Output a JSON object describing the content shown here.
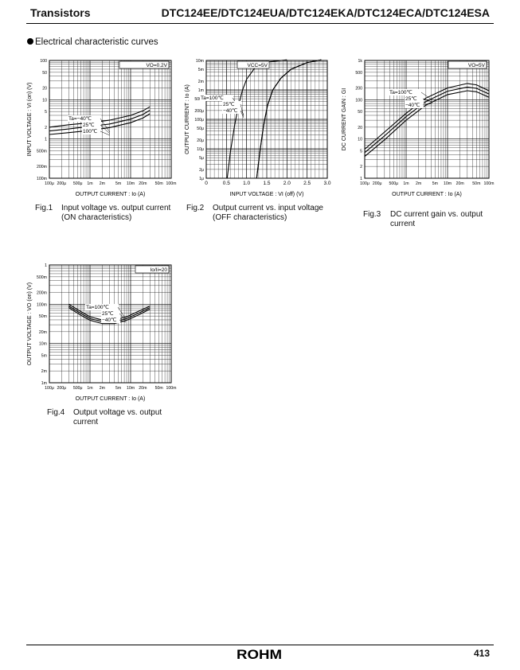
{
  "header": {
    "category": "Transistors",
    "part_numbers": "DTC124EE/DTC124EUA/DTC124EKA/DTC124ECA/DTC124ESA"
  },
  "section_title": "Electrical characteristic curves",
  "footer": {
    "brand": "ROHM",
    "page_number": "413"
  },
  "figures": [
    {
      "number": "Fig.1",
      "caption": "Input voltage vs. output current\n(ON characteristics)"
    },
    {
      "number": "Fig.2",
      "caption": "Output current vs. input voltage\n(OFF characteristics)"
    },
    {
      "number": "Fig.3",
      "caption": "DC current gain vs. output\ncurrent"
    },
    {
      "number": "Fig.4",
      "caption": "Output voltage vs. output\ncurrent"
    }
  ],
  "chart_data": [
    {
      "type": "line",
      "xscale": "log",
      "yscale": "log",
      "xlim": [
        0.0001,
        0.1
      ],
      "ylim": [
        0.1,
        100
      ],
      "xlabel": "OUTPUT  CURRENT : Io  (A)",
      "ylabel": "INPUT  VOLTAGE : VI (on)  (V)",
      "x_tick_labels": [
        "100μ",
        "200μ",
        "500μ",
        "1m",
        "2m",
        "5m",
        "10m",
        "20m",
        "50m",
        "100m"
      ],
      "x_tick_values": [
        0.0001,
        0.0002,
        0.0005,
        0.001,
        0.002,
        0.005,
        0.01,
        0.02,
        0.05,
        0.1
      ],
      "y_tick_labels": [
        "100",
        "50",
        "20",
        "10",
        "5",
        "2",
        "1",
        "500m",
        "200m",
        "100m"
      ],
      "y_tick_values": [
        100,
        50,
        20,
        10,
        5,
        2,
        1,
        0.5,
        0.2,
        0.1
      ],
      "condition": "VO=0.2V",
      "legend_title": "Ta=",
      "series": [
        {
          "name": "−40℃",
          "x": [
            0.0001,
            0.0003,
            0.001,
            0.003,
            0.01,
            0.02,
            0.03
          ],
          "y": [
            2.0,
            2.3,
            2.6,
            3.0,
            4.0,
            5.2,
            6.6
          ]
        },
        {
          "name": "25℃",
          "x": [
            0.0001,
            0.0003,
            0.001,
            0.003,
            0.01,
            0.02,
            0.03
          ],
          "y": [
            1.6,
            1.8,
            2.1,
            2.4,
            3.2,
            4.2,
            5.4
          ]
        },
        {
          "name": "100℃",
          "x": [
            0.0001,
            0.0003,
            0.001,
            0.003,
            0.01,
            0.02,
            0.03
          ],
          "y": [
            1.3,
            1.45,
            1.65,
            1.95,
            2.6,
            3.4,
            4.4
          ]
        }
      ]
    },
    {
      "type": "line",
      "xscale": "linear",
      "yscale": "log",
      "xlim": [
        0,
        3.0
      ],
      "ylim": [
        1e-06,
        0.01
      ],
      "xlabel": "INPUT  VOLTAGE : VI (off)  (V)",
      "ylabel": "OUTPUT  CURRENT : Io  (A)",
      "x_tick_labels": [
        "0",
        "0.5",
        "1.0",
        "1.5",
        "2.0",
        "2.5",
        "3.0"
      ],
      "x_tick_values": [
        0,
        0.5,
        1.0,
        1.5,
        2.0,
        2.5,
        3.0
      ],
      "y_tick_labels": [
        "10m",
        "5m",
        "2m",
        "1m",
        "500μ",
        "200μ",
        "100μ",
        "50μ",
        "20μ",
        "10μ",
        "5μ",
        "2μ",
        "1μ"
      ],
      "y_tick_values": [
        0.01,
        0.005,
        0.002,
        0.001,
        0.0005,
        0.0002,
        0.0001,
        5e-05,
        2e-05,
        1e-05,
        5e-06,
        2e-06,
        1e-06
      ],
      "condition": "VCC=5V",
      "legend_title": "Ta=",
      "series": [
        {
          "name": "100℃",
          "x": [
            0.52,
            0.6,
            0.7,
            0.8,
            0.9,
            1.0,
            1.2,
            1.5,
            2.0
          ],
          "y": [
            1e-06,
            8e-06,
            6e-05,
            0.0003,
            0.001,
            0.0023,
            0.0055,
            0.0088,
            0.0105
          ]
        },
        {
          "name": "25℃",
          "x": [
            1.25,
            1.33,
            1.42,
            1.52,
            1.65,
            1.85,
            2.1,
            2.5,
            2.85
          ],
          "y": [
            1e-06,
            8e-06,
            6e-05,
            0.0003,
            0.001,
            0.0025,
            0.005,
            0.0085,
            0.0105
          ]
        },
        {
          "name": "−40℃",
          "x": [
            1.25,
            1.33,
            1.42,
            1.52,
            1.65,
            1.85,
            2.1,
            2.5,
            2.85
          ],
          "y": [
            1e-06,
            8e-06,
            6e-05,
            0.0003,
            0.001,
            0.0025,
            0.005,
            0.0085,
            0.0105
          ]
        }
      ]
    },
    {
      "type": "line",
      "xscale": "log",
      "yscale": "log",
      "xlim": [
        0.0001,
        0.1
      ],
      "ylim": [
        1,
        1000
      ],
      "xlabel": "OUTPUT  CURRENT : Io  (A)",
      "ylabel": "DC  CURRENT  GAIN : GI",
      "x_tick_labels": [
        "100μ",
        "200μ",
        "500μ",
        "1m",
        "2m",
        "5m",
        "10m",
        "20m",
        "50m",
        "100m"
      ],
      "x_tick_values": [
        0.0001,
        0.0002,
        0.0005,
        0.001,
        0.002,
        0.005,
        0.01,
        0.02,
        0.05,
        0.1
      ],
      "y_tick_labels": [
        "1k",
        "500",
        "200",
        "100",
        "50",
        "20",
        "10",
        "5",
        "2",
        "1"
      ],
      "y_tick_values": [
        1000,
        500,
        200,
        100,
        50,
        20,
        10,
        5,
        2,
        1
      ],
      "condition": "VO=5V",
      "legend_title": "Ta=",
      "series": [
        {
          "name": "100℃",
          "x": [
            0.0001,
            0.0003,
            0.001,
            0.003,
            0.01,
            0.03,
            0.05,
            0.1
          ],
          "y": [
            5.5,
            15,
            45,
            110,
            200,
            260,
            240,
            170
          ]
        },
        {
          "name": "25℃",
          "x": [
            0.0001,
            0.0003,
            0.001,
            0.003,
            0.01,
            0.03,
            0.05,
            0.1
          ],
          "y": [
            4.5,
            12,
            37,
            90,
            165,
            210,
            195,
            140
          ]
        },
        {
          "name": "−40℃",
          "x": [
            0.0001,
            0.0003,
            0.001,
            0.003,
            0.01,
            0.03,
            0.05,
            0.1
          ],
          "y": [
            3.6,
            9.5,
            30,
            73,
            135,
            170,
            160,
            115
          ]
        }
      ]
    },
    {
      "type": "line",
      "xscale": "log",
      "yscale": "log",
      "xlim": [
        0.0001,
        0.1
      ],
      "ylim": [
        0.001,
        1
      ],
      "xlabel": "OUTPUT  CURRENT : Io  (A)",
      "ylabel": "OUTPUT  VOLTAGE : VO (on)  (V)",
      "x_tick_labels": [
        "100μ",
        "200μ",
        "500μ",
        "1m",
        "2m",
        "5m",
        "10m",
        "20m",
        "50m",
        "100m"
      ],
      "x_tick_values": [
        0.0001,
        0.0002,
        0.0005,
        0.001,
        0.002,
        0.005,
        0.01,
        0.02,
        0.05,
        0.1
      ],
      "y_tick_labels": [
        "1",
        "500m",
        "200m",
        "100m",
        "50m",
        "20m",
        "10m",
        "5m",
        "2m",
        "1m"
      ],
      "y_tick_values": [
        1,
        0.5,
        0.2,
        0.1,
        0.05,
        0.02,
        0.01,
        0.005,
        0.002,
        0.001
      ],
      "condition": "Io/Ii=20",
      "legend_title": "Ta=",
      "series": [
        {
          "name": "100℃",
          "x": [
            0.0003,
            0.0006,
            0.001,
            0.002,
            0.004,
            0.008,
            0.015,
            0.03
          ],
          "y": [
            0.1,
            0.065,
            0.048,
            0.04,
            0.04,
            0.048,
            0.065,
            0.09
          ]
        },
        {
          "name": "25℃",
          "x": [
            0.0003,
            0.0006,
            0.001,
            0.002,
            0.004,
            0.008,
            0.015,
            0.03
          ],
          "y": [
            0.09,
            0.058,
            0.043,
            0.036,
            0.036,
            0.043,
            0.058,
            0.082
          ]
        },
        {
          "name": "−40℃",
          "x": [
            0.0003,
            0.0006,
            0.001,
            0.002,
            0.004,
            0.008,
            0.015,
            0.03
          ],
          "y": [
            0.082,
            0.052,
            0.039,
            0.032,
            0.032,
            0.039,
            0.052,
            0.075
          ]
        }
      ]
    }
  ]
}
